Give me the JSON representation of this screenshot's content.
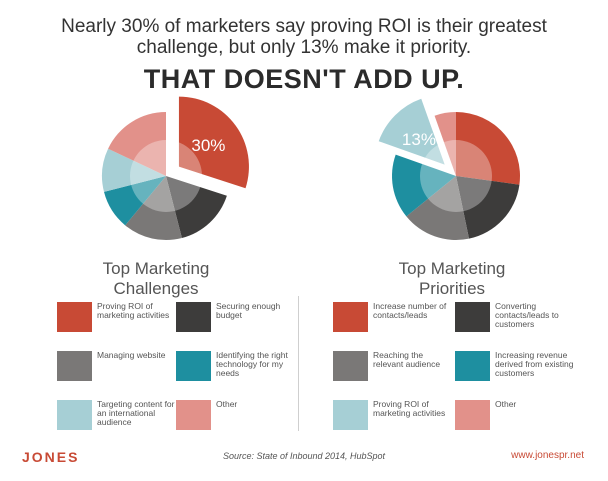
{
  "headline": {
    "line1": "Nearly 30% of marketers say proving ROI is their greatest",
    "line2": "challenge, but only 13% make it priority.",
    "emphasis": "THAT DOESN'T ADD UP."
  },
  "chart_data": [
    {
      "type": "pie",
      "title_line1": "Top Marketing",
      "title_line2": "Challenges",
      "exploded_label": "30%",
      "slices": [
        {
          "label": "Proving ROI of marketing activities",
          "value": 30,
          "color": "#c84a35",
          "exploded": true
        },
        {
          "label": "Securing enough budget",
          "value": 16,
          "color": "#3d3c3b"
        },
        {
          "label": "Managing website",
          "value": 15,
          "color": "#7a7877"
        },
        {
          "label": "Identifying the right technology for my needs",
          "value": 10,
          "color": "#1e8fa0"
        },
        {
          "label": "Targeting content for an international audience",
          "value": 11,
          "color": "#a6cfd5"
        },
        {
          "label": "Other",
          "value": 18,
          "color": "#e2918a"
        }
      ]
    },
    {
      "type": "pie",
      "title_line1": "Top Marketing",
      "title_line2": "Priorities",
      "exploded_label": "13%",
      "slices": [
        {
          "label": "Increase number of contacts/leads",
          "value": 25,
          "color": "#c84a35"
        },
        {
          "label": "Converting contacts/leads to customers",
          "value": 18,
          "color": "#3d3c3b"
        },
        {
          "label": "Reaching the relevant audience",
          "value": 16,
          "color": "#7a7877"
        },
        {
          "label": "Increasing revenue derived from existing customers",
          "value": 15,
          "color": "#1e8fa0"
        },
        {
          "label": "Proving ROI of marketing activities",
          "value": 13,
          "color": "#a6cfd5",
          "exploded": true
        },
        {
          "label": "Other",
          "value": 5,
          "color": "#e2918a"
        }
      ]
    }
  ],
  "footer": {
    "logo": "JONES",
    "source": "Source: State of Inbound 2014, HubSpot",
    "url": "www.jonespr.net"
  }
}
